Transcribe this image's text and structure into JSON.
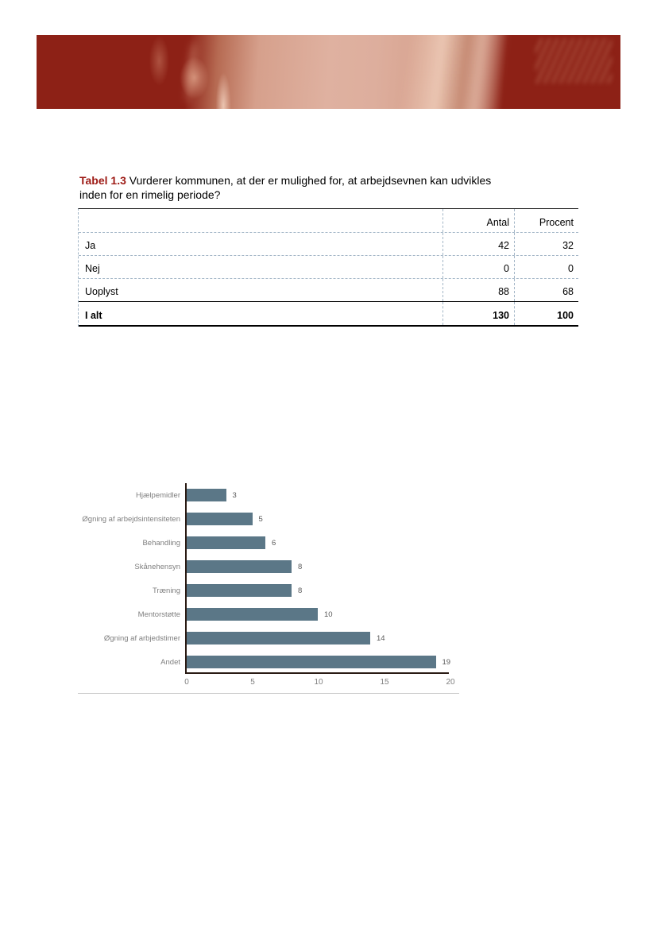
{
  "colors": {
    "accent_red": "#9d1a15",
    "banner_dark": "#8d2116",
    "banner_light": "#ddae9d",
    "table_dash_border": "#a3b6c7",
    "axis_color": "#2a1b14",
    "chart_label_gray": "#7f7f7f",
    "baseline_gray": "#c9c9c9"
  },
  "title": {
    "prefix": "Tabel 1.3",
    "text": "Vurderer kommunen, at der er mulighed for, at arbejdsevnen kan udvikles inden for en rimelig periode?"
  },
  "table": {
    "headers": {
      "label": "",
      "antal": "Antal",
      "procent": "Procent"
    },
    "rows": [
      {
        "label": "Ja",
        "antal": "42",
        "procent": "32"
      },
      {
        "label": "Nej",
        "antal": "0",
        "procent": "0"
      },
      {
        "label": "Uoplyst",
        "antal": "88",
        "procent": "68"
      }
    ],
    "total": {
      "label": "I alt",
      "antal": "130",
      "procent": "100"
    }
  },
  "chart_data": {
    "type": "bar",
    "orientation": "horizontal",
    "categories": [
      "Hjælpemidler",
      "Øgning af arbejdsintensiteten",
      "Behandling",
      "Skånehensyn",
      "Træning",
      "Mentorstøtte",
      "Øgning af arbjedstimer",
      "Andet"
    ],
    "values": [
      3,
      5,
      6,
      8,
      8,
      10,
      14,
      19
    ],
    "xlim": [
      0,
      20
    ],
    "x_ticks": [
      0,
      5,
      10,
      15,
      20
    ],
    "bar_color": "#5b7787",
    "value_labels": true,
    "grid": false,
    "legend": "none",
    "title": "",
    "xlabel": "",
    "ylabel": ""
  }
}
